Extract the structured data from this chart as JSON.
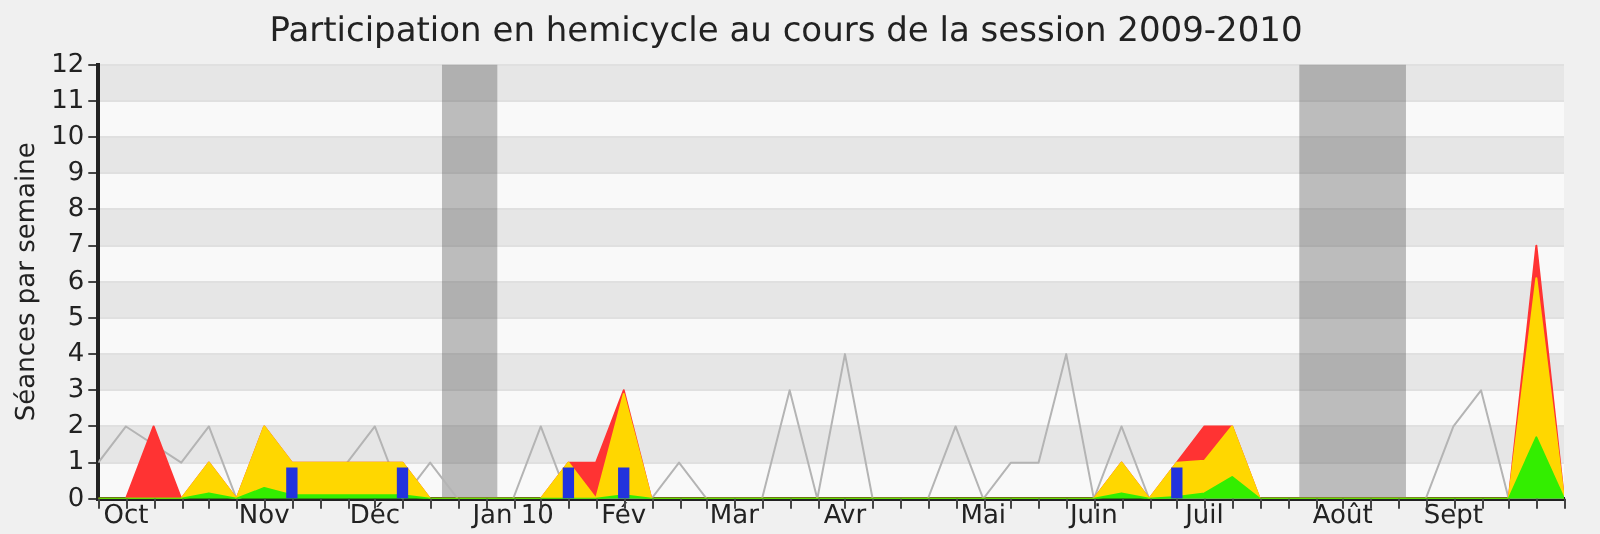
{
  "chart_data": {
    "type": "area",
    "title": "Participation en hemicycle au cours de la session 2009-2010",
    "ylabel": "Séances par semaine",
    "x": [
      "2009-09-24",
      "2009-10-01",
      "2009-10-08",
      "2009-10-15",
      "2009-10-22",
      "2009-10-29",
      "2009-11-05",
      "2009-11-12",
      "2009-11-19",
      "2009-11-26",
      "2009-12-03",
      "2009-12-10",
      "2009-12-17",
      "2009-12-24",
      "2009-12-31",
      "2010-01-07",
      "2010-01-14",
      "2010-01-21",
      "2010-01-28",
      "2010-02-04",
      "2010-02-11",
      "2010-02-18",
      "2010-02-25",
      "2010-03-04",
      "2010-03-11",
      "2010-03-18",
      "2010-03-25",
      "2010-04-01",
      "2010-04-08",
      "2010-04-15",
      "2010-04-22",
      "2010-04-29",
      "2010-05-06",
      "2010-05-13",
      "2010-05-20",
      "2010-05-27",
      "2010-06-03",
      "2010-06-10",
      "2010-06-17",
      "2010-06-24",
      "2010-07-01",
      "2010-07-08",
      "2010-07-15",
      "2010-07-22",
      "2010-07-29",
      "2010-08-05",
      "2010-08-12",
      "2010-08-19",
      "2010-08-26",
      "2010-09-02",
      "2010-09-09",
      "2010-09-16",
      "2010-09-23",
      "2010-09-30"
    ],
    "xlim": [
      "2009-09-24",
      "2010-09-30"
    ],
    "xticks": [
      {
        "value": "2009-09-24",
        "label": null
      },
      {
        "value": "2009-10-01",
        "label": "Oct"
      },
      {
        "value": "2009-10-08",
        "label": null
      },
      {
        "value": "2009-10-15",
        "label": null
      },
      {
        "value": "2009-10-22",
        "label": null
      },
      {
        "value": "2009-10-29",
        "label": null
      },
      {
        "value": "2009-11-05",
        "label": "Nov"
      },
      {
        "value": "2009-11-12",
        "label": null
      },
      {
        "value": "2009-11-19",
        "label": null
      },
      {
        "value": "2009-11-26",
        "label": null
      },
      {
        "value": "2009-12-03",
        "label": "Déc"
      },
      {
        "value": "2009-12-10",
        "label": null
      },
      {
        "value": "2009-12-17",
        "label": null
      },
      {
        "value": "2009-12-24",
        "label": null
      },
      {
        "value": "2009-12-31",
        "label": null
      },
      {
        "value": "2010-01-07",
        "label": "Jan 10"
      },
      {
        "value": "2010-01-14",
        "label": null
      },
      {
        "value": "2010-01-21",
        "label": null
      },
      {
        "value": "2010-01-28",
        "label": null
      },
      {
        "value": "2010-02-04",
        "label": "Fév"
      },
      {
        "value": "2010-02-11",
        "label": null
      },
      {
        "value": "2010-02-18",
        "label": null
      },
      {
        "value": "2010-02-25",
        "label": null
      },
      {
        "value": "2010-03-04",
        "label": "Mar"
      },
      {
        "value": "2010-03-11",
        "label": null
      },
      {
        "value": "2010-03-18",
        "label": null
      },
      {
        "value": "2010-03-25",
        "label": null
      },
      {
        "value": "2010-04-01",
        "label": "Avr"
      },
      {
        "value": "2010-04-08",
        "label": null
      },
      {
        "value": "2010-04-15",
        "label": null
      },
      {
        "value": "2010-04-22",
        "label": null
      },
      {
        "value": "2010-04-29",
        "label": null
      },
      {
        "value": "2010-05-06",
        "label": "Mai"
      },
      {
        "value": "2010-05-13",
        "label": null
      },
      {
        "value": "2010-05-20",
        "label": null
      },
      {
        "value": "2010-05-27",
        "label": null
      },
      {
        "value": "2010-06-03",
        "label": "Juin"
      },
      {
        "value": "2010-06-10",
        "label": null
      },
      {
        "value": "2010-06-17",
        "label": null
      },
      {
        "value": "2010-06-24",
        "label": null
      },
      {
        "value": "2010-07-01",
        "label": "Juil"
      },
      {
        "value": "2010-07-08",
        "label": null
      },
      {
        "value": "2010-07-15",
        "label": null
      },
      {
        "value": "2010-07-22",
        "label": null
      },
      {
        "value": "2010-07-29",
        "label": null
      },
      {
        "value": "2010-08-05",
        "label": "Août"
      },
      {
        "value": "2010-08-12",
        "label": null
      },
      {
        "value": "2010-08-19",
        "label": null
      },
      {
        "value": "2010-08-26",
        "label": null
      },
      {
        "value": "2010-09-02",
        "label": "Sept"
      },
      {
        "value": "2010-09-09",
        "label": null
      },
      {
        "value": "2010-09-16",
        "label": null
      },
      {
        "value": "2010-09-23",
        "label": null
      },
      {
        "value": "2010-09-30",
        "label": null
      }
    ],
    "ylim": [
      0,
      12
    ],
    "yticks": [
      0,
      1,
      2,
      3,
      4,
      5,
      6,
      7,
      8,
      9,
      10,
      11,
      12
    ],
    "grid": "y",
    "legend": false,
    "marker": "none",
    "stacked": true,
    "bands": [
      {
        "axis": "x",
        "from": "2009-12-20",
        "to": "2010-01-03",
        "color": "#545454"
      },
      {
        "axis": "x",
        "from": "2010-07-25",
        "to": "2010-08-21",
        "color": "#545454"
      }
    ],
    "series": [
      {
        "type": "line",
        "color": "#b4b4b4",
        "values": [
          1,
          2,
          null,
          1,
          2,
          0,
          null,
          null,
          null,
          1,
          2,
          0,
          1,
          0,
          0,
          0,
          2,
          0,
          null,
          null,
          0,
          1,
          0,
          0,
          0,
          3,
          0,
          4,
          0,
          0,
          0,
          2,
          0,
          1,
          1,
          4,
          0,
          2,
          0,
          0,
          0,
          0,
          0,
          0,
          0,
          0,
          0,
          0,
          0,
          2,
          3,
          0,
          0,
          0
        ]
      },
      {
        "color": "#33ee00",
        "values": [
          0,
          0,
          0,
          0,
          0.15,
          0,
          0.3,
          0.1,
          0.1,
          0.1,
          0.1,
          0.1,
          0,
          0,
          0,
          0,
          0,
          0,
          0,
          0.1,
          0,
          0,
          0,
          0,
          0,
          0,
          0,
          0,
          0,
          0,
          0,
          0,
          0,
          0,
          0,
          0,
          0,
          0.15,
          0,
          0.05,
          0.15,
          0.6,
          0,
          0,
          0,
          0,
          0,
          0,
          0,
          0,
          0,
          0,
          1.7,
          0
        ]
      },
      {
        "color": "#ffd700",
        "values": [
          0,
          0,
          0,
          0,
          0.85,
          0,
          1.7,
          0.9,
          0.9,
          0.9,
          0.9,
          0.9,
          0,
          0,
          0,
          0,
          0,
          1,
          0,
          2.8,
          0,
          0,
          0,
          0,
          0,
          0,
          0,
          0,
          0,
          0,
          0,
          0,
          0,
          0,
          0,
          0,
          0,
          0.85,
          0,
          0.95,
          0.9,
          1.4,
          0,
          0,
          0,
          0,
          0,
          0,
          0,
          0,
          0,
          0,
          4.4,
          0
        ]
      },
      {
        "color": "#ff3333",
        "values": [
          0,
          0,
          2,
          0,
          0,
          0,
          0,
          0,
          0,
          0,
          0,
          0,
          0,
          0,
          0,
          0,
          0,
          0,
          1,
          0.1,
          0,
          0,
          0,
          0,
          0,
          0,
          0,
          0,
          0,
          0,
          0,
          0,
          0,
          0,
          0,
          0,
          0,
          0,
          0,
          0,
          0.95,
          0,
          0,
          0,
          0,
          0,
          0,
          0,
          0,
          0,
          0,
          0,
          0.9,
          0
        ]
      },
      {
        "type": "bar",
        "color": "#2233dd",
        "values": [
          null,
          null,
          null,
          null,
          null,
          null,
          null,
          0.85,
          null,
          null,
          null,
          0.85,
          null,
          null,
          null,
          null,
          null,
          0.85,
          null,
          0.85,
          null,
          null,
          null,
          null,
          null,
          null,
          null,
          null,
          null,
          null,
          null,
          null,
          null,
          null,
          null,
          null,
          null,
          null,
          null,
          0.85,
          null,
          null,
          null,
          null,
          null,
          null,
          null,
          null,
          null,
          null,
          null,
          null,
          null,
          null
        ]
      }
    ]
  }
}
